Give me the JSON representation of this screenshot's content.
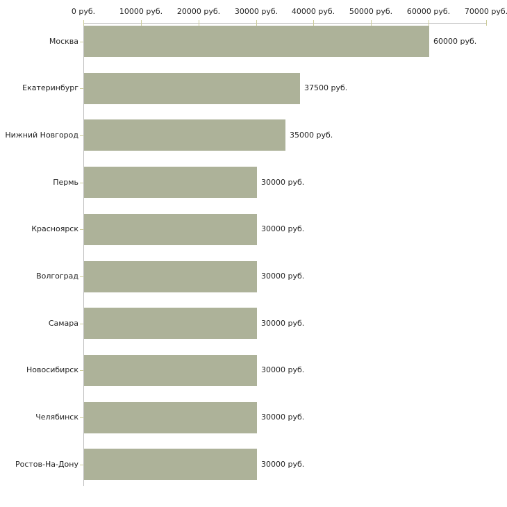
{
  "chart_data": {
    "type": "bar",
    "orientation": "horizontal",
    "title": "",
    "categories": [
      "Москва",
      "Екатеринбург",
      "Нижний Новгород",
      "Пермь",
      "Красноярск",
      "Волгоград",
      "Самара",
      "Новосибирск",
      "Челябинск",
      "Ростов-На-Дону"
    ],
    "values": [
      60000,
      37500,
      35000,
      30000,
      30000,
      30000,
      30000,
      30000,
      30000,
      30000
    ],
    "value_labels": [
      "60000 руб.",
      "37500 руб.",
      "35000 руб.",
      "30000 руб.",
      "30000 руб.",
      "30000 руб.",
      "30000 руб.",
      "30000 руб.",
      "30000 руб.",
      "30000 руб."
    ],
    "x_axis": {
      "position": "top",
      "min": 0,
      "max": 70000,
      "tick_values": [
        0,
        10000,
        20000,
        30000,
        40000,
        50000,
        60000,
        70000
      ],
      "tick_labels": [
        "0 руб.",
        "10000 руб.",
        "20000 руб.",
        "30000 руб.",
        "40000 руб.",
        "50000 руб.",
        "60000 руб.",
        "70000 руб."
      ]
    },
    "grid": false,
    "legend": false,
    "colors": {
      "bar": "#adb299",
      "axis_line": "#c0c0c0",
      "tick": "#cccc99",
      "text": "#222222",
      "background": "#ffffff"
    }
  }
}
